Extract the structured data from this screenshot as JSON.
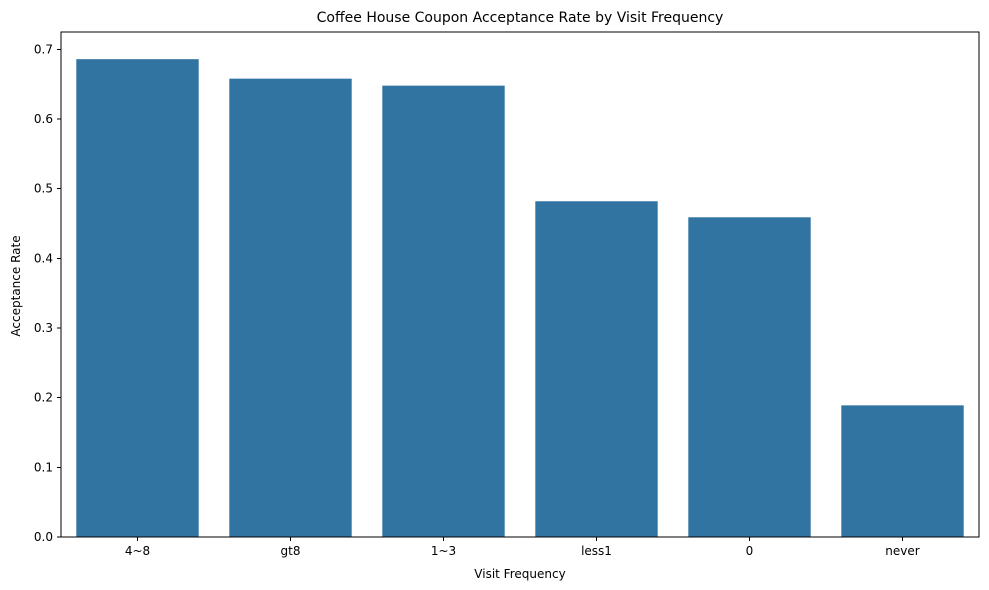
{
  "chart_data": {
    "type": "bar",
    "title": "Coffee House Coupon Acceptance Rate by Visit Frequency",
    "xlabel": "Visit Frequency",
    "ylabel": "Acceptance Rate",
    "categories": [
      "4~8",
      "gt8",
      "1~3",
      "less1",
      "0",
      "never"
    ],
    "values": [
      0.686,
      0.658,
      0.648,
      0.482,
      0.459,
      0.189
    ],
    "ylim": [
      0,
      0.725
    ],
    "yticks": [
      "0.0",
      "0.1",
      "0.2",
      "0.3",
      "0.4",
      "0.5",
      "0.6",
      "0.7"
    ],
    "grid": false,
    "legend": "none",
    "bar_color": "#3274a1"
  }
}
